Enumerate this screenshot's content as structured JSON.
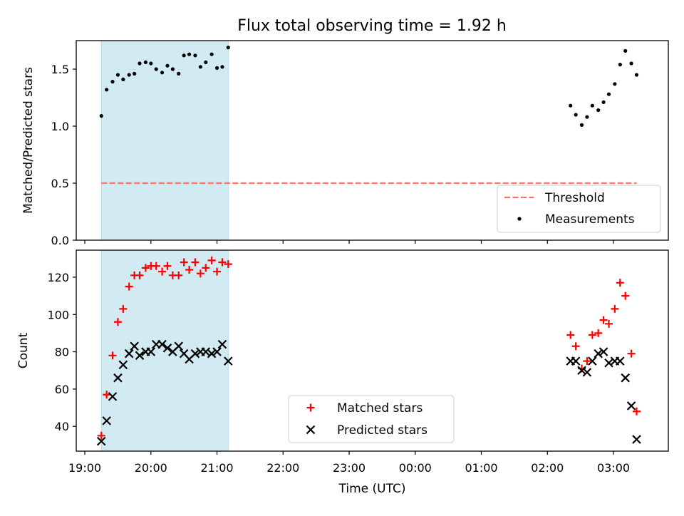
{
  "figure": {
    "title": "Flux total observing time = 1.92 h"
  },
  "chart_data": [
    {
      "id": "ratio-panel",
      "type": "scatter",
      "ylabel": "Matched/Predicted stars",
      "xlabel": "",
      "xlim": [
        18.87,
        27.83
      ],
      "ylim": [
        0,
        1.75
      ],
      "yticks": [
        0.0,
        0.5,
        1.0,
        1.5
      ],
      "ytick_labels": [
        "0.0",
        "0.5",
        "1.0",
        "1.5"
      ],
      "shaded_span": {
        "from": 19.25,
        "to": 21.17,
        "color": "#add8e6"
      },
      "threshold": {
        "name": "Threshold",
        "value": 0.5,
        "from": 19.25,
        "to": 27.35,
        "color": "#ff6f6f"
      },
      "series": [
        {
          "name": "Measurements",
          "color": "#000000",
          "x": [
            19.25,
            19.33,
            19.42,
            19.5,
            19.58,
            19.67,
            19.75,
            19.83,
            19.92,
            20.0,
            20.08,
            20.17,
            20.25,
            20.33,
            20.42,
            20.5,
            20.58,
            20.67,
            20.75,
            20.83,
            20.92,
            21.0,
            21.08,
            21.17,
            26.35,
            26.43,
            26.52,
            26.6,
            26.68,
            26.77,
            26.85,
            26.93,
            27.02,
            27.1,
            27.18,
            27.27,
            27.35
          ],
          "y": [
            1.09,
            1.32,
            1.39,
            1.45,
            1.41,
            1.45,
            1.46,
            1.55,
            1.56,
            1.55,
            1.5,
            1.47,
            1.53,
            1.5,
            1.46,
            1.62,
            1.63,
            1.62,
            1.52,
            1.56,
            1.63,
            1.51,
            1.52,
            1.69,
            1.18,
            1.1,
            1.01,
            1.08,
            1.18,
            1.14,
            1.21,
            1.28,
            1.37,
            1.54,
            1.66,
            1.55,
            1.45
          ]
        }
      ],
      "legend": [
        "Threshold",
        "Measurements"
      ],
      "legend_position": "lower-right"
    },
    {
      "id": "count-panel",
      "type": "scatter",
      "ylabel": "Count",
      "xlabel": "Time (UTC)",
      "xlim": [
        18.87,
        27.83
      ],
      "ylim": [
        26.7,
        134.5
      ],
      "yticks": [
        40,
        60,
        80,
        100,
        120
      ],
      "ytick_labels": [
        "40",
        "60",
        "80",
        "100",
        "120"
      ],
      "xticks": [
        19,
        20,
        21,
        22,
        23,
        24,
        25,
        26,
        27
      ],
      "xtick_labels": [
        "19:00",
        "20:00",
        "21:00",
        "22:00",
        "23:00",
        "00:00",
        "01:00",
        "02:00",
        "03:00"
      ],
      "shaded_span": {
        "from": 19.25,
        "to": 21.17,
        "color": "#add8e6"
      },
      "series": [
        {
          "name": "Matched stars",
          "marker": "plus",
          "color": "#ff0000",
          "x": [
            19.25,
            19.33,
            19.42,
            19.5,
            19.58,
            19.67,
            19.75,
            19.83,
            19.92,
            20.0,
            20.08,
            20.17,
            20.25,
            20.33,
            20.42,
            20.5,
            20.58,
            20.67,
            20.75,
            20.83,
            20.92,
            21.0,
            21.08,
            21.17,
            26.35,
            26.43,
            26.52,
            26.6,
            26.68,
            26.77,
            26.85,
            26.93,
            27.02,
            27.1,
            27.18,
            27.27,
            27.35
          ],
          "y": [
            35,
            57,
            78,
            96,
            103,
            115,
            121,
            121,
            125,
            126,
            126,
            123,
            126,
            121,
            121,
            128,
            124,
            128,
            122,
            125,
            129,
            123,
            128,
            127,
            89,
            83,
            71,
            75,
            89,
            90,
            97,
            95,
            103,
            117,
            110,
            79,
            48
          ]
        },
        {
          "name": "Predicted stars",
          "marker": "x",
          "color": "#000000",
          "x": [
            19.25,
            19.33,
            19.42,
            19.5,
            19.58,
            19.67,
            19.75,
            19.83,
            19.92,
            20.0,
            20.08,
            20.17,
            20.25,
            20.33,
            20.42,
            20.5,
            20.58,
            20.67,
            20.75,
            20.83,
            20.92,
            21.0,
            21.08,
            21.17,
            26.35,
            26.43,
            26.52,
            26.6,
            26.68,
            26.77,
            26.85,
            26.93,
            27.02,
            27.1,
            27.18,
            27.27,
            27.35
          ],
          "y": [
            32,
            43,
            56,
            66,
            73,
            79,
            83,
            78,
            80,
            80,
            84,
            84,
            82,
            80,
            83,
            79,
            76,
            79,
            80,
            80,
            79,
            80,
            84,
            75,
            75,
            75,
            70,
            69,
            75,
            79,
            80,
            74,
            75,
            75,
            66,
            51,
            33
          ]
        }
      ],
      "legend": [
        "Matched stars",
        "Predicted stars"
      ],
      "legend_position": "lower-center"
    }
  ]
}
